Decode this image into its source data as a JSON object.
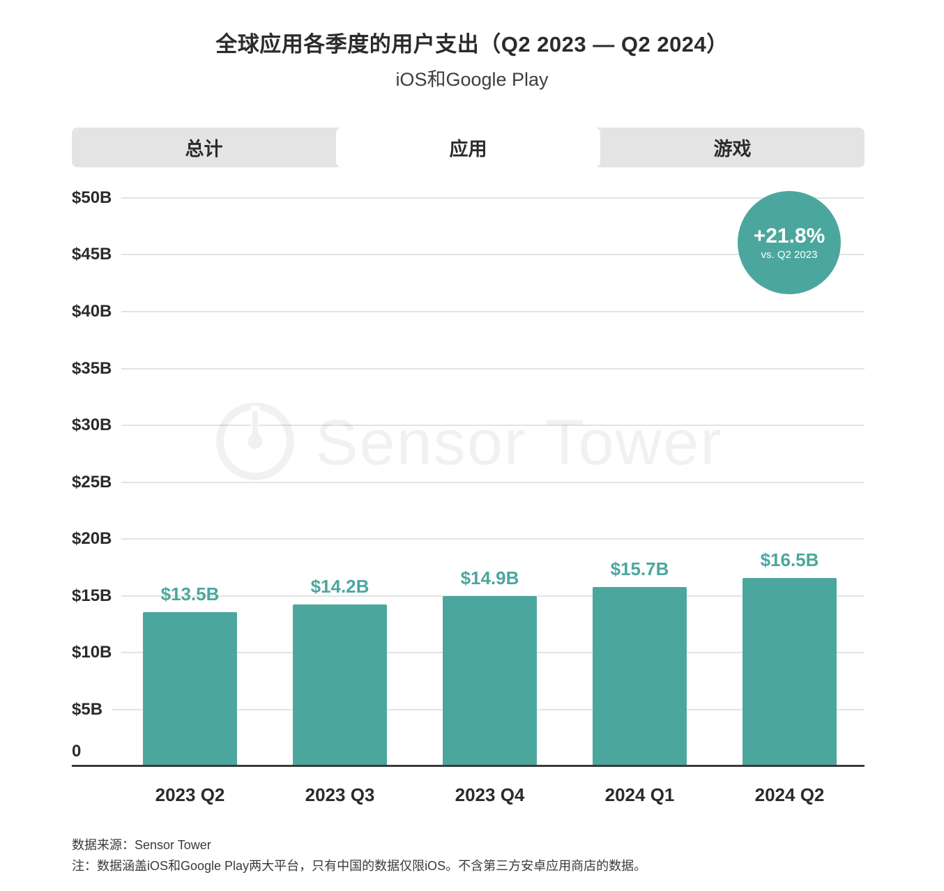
{
  "title": "全球应用各季度的用户支出（Q2 2023 — Q2 2024）",
  "subtitle": "iOS和Google Play",
  "tabs": [
    {
      "label": "总计",
      "active": false
    },
    {
      "label": "应用",
      "active": true
    },
    {
      "label": "游戏",
      "active": false
    }
  ],
  "badge": {
    "value": "+21.8%",
    "caption": "vs. Q2 2023"
  },
  "watermark": "Sensor Tower",
  "footer": {
    "source": "数据来源：Sensor Tower",
    "note": "注：数据涵盖iOS和Google Play两大平台，只有中国的数据仅限iOS。不含第三方安卓应用商店的数据。"
  },
  "colors": {
    "bar": "#4BA79E",
    "badge": "#4BA79E",
    "value_label": "#4BA79E",
    "grid": "#e3e3e3",
    "tab_bg": "#e4e4e4",
    "active_tab_bg": "#ffffff",
    "text": "#2b2b2b"
  },
  "chart_data": {
    "type": "bar",
    "title": "全球应用各季度的用户支出（Q2 2023 — Q2 2024）",
    "subtitle": "iOS和Google Play",
    "categories": [
      "2023 Q2",
      "2023 Q3",
      "2023 Q4",
      "2024 Q1",
      "2024 Q2"
    ],
    "values": [
      13.5,
      14.2,
      14.9,
      15.7,
      16.5
    ],
    "value_labels": [
      "$13.5B",
      "$14.2B",
      "$14.9B",
      "$15.7B",
      "$16.5B"
    ],
    "unit": "USD billions",
    "ylim": [
      0,
      50
    ],
    "yticks": [
      {
        "value": 50,
        "label": "$50B"
      },
      {
        "value": 45,
        "label": "$45B"
      },
      {
        "value": 40,
        "label": "$40B"
      },
      {
        "value": 35,
        "label": "$35B"
      },
      {
        "value": 30,
        "label": "$30B"
      },
      {
        "value": 25,
        "label": "$25B"
      },
      {
        "value": 20,
        "label": "$20B"
      },
      {
        "value": 15,
        "label": "$15B"
      },
      {
        "value": 10,
        "label": "$10B"
      },
      {
        "value": 5,
        "label": "$5B"
      },
      {
        "value": 0,
        "label": "0"
      }
    ],
    "grid": true,
    "legend": "none",
    "annotation": {
      "text": "+21.8%",
      "caption": "vs. Q2 2023",
      "refers_to": "2024 Q2 vs Q2 2023"
    }
  }
}
